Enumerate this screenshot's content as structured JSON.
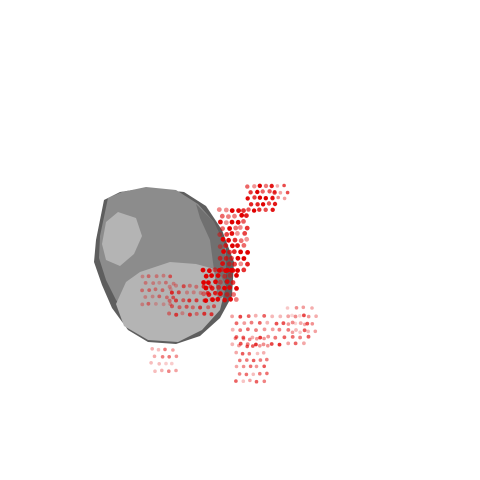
{
  "scene": {
    "background": "#ffffff",
    "object": {
      "kind": "rock-mesh",
      "body_color": "#8c8c8c",
      "dark_edge_color": "#5e5e5e",
      "highlight_color": "#b4b4b4"
    },
    "point_cloud": {
      "color": "#e00000"
    }
  }
}
